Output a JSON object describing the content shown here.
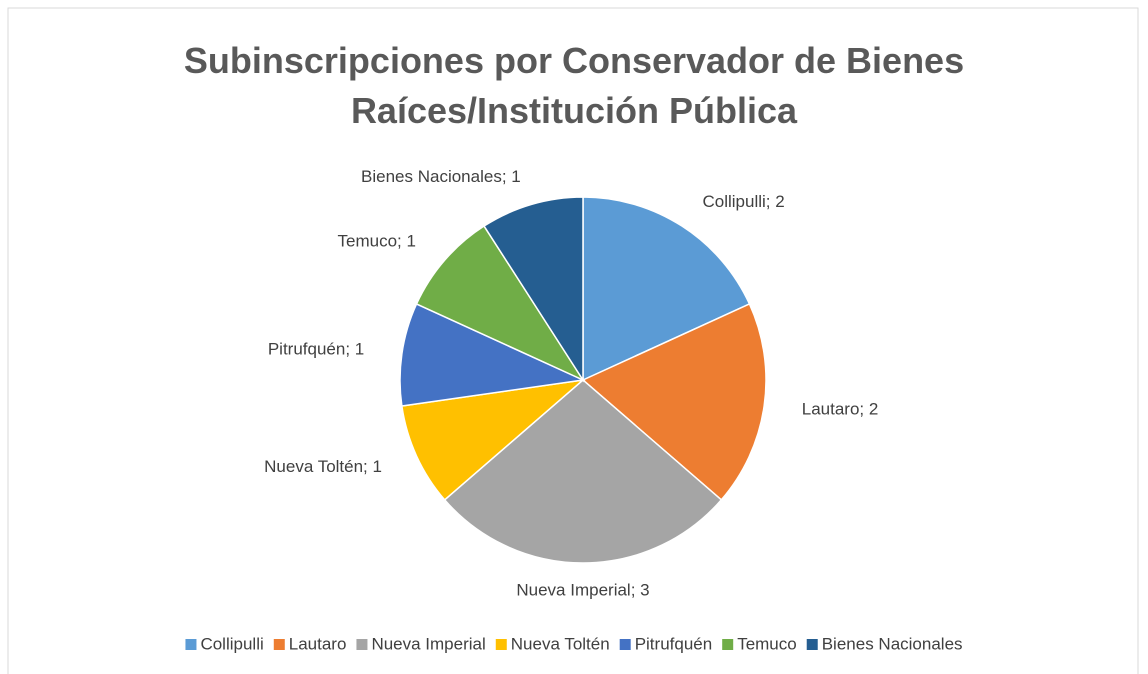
{
  "chart_data": {
    "type": "pie",
    "title": "Subinscripciones por Conservador de Bienes Raíces/Institución Pública",
    "categories": [
      "Collipulli",
      "Lautaro",
      "Nueva Imperial",
      "Nueva Toltén",
      "Pitrufquén",
      "Temuco",
      "Bienes Nacionales"
    ],
    "values": [
      2,
      2,
      3,
      1,
      1,
      1,
      1
    ],
    "value_labels": [
      "Collipulli; 2",
      "Lautaro; 2",
      "Nueva Imperial; 3",
      "Nueva Toltén; 1",
      "Pitrufquén; 1",
      "Temuco; 1",
      "Bienes Nacionales; 1"
    ],
    "colors": [
      "#5b9bd5",
      "#ed7d31",
      "#a5a5a5",
      "#ffc000",
      "#4472c4",
      "#70ad47",
      "#255e91"
    ],
    "legend": "bottom"
  }
}
